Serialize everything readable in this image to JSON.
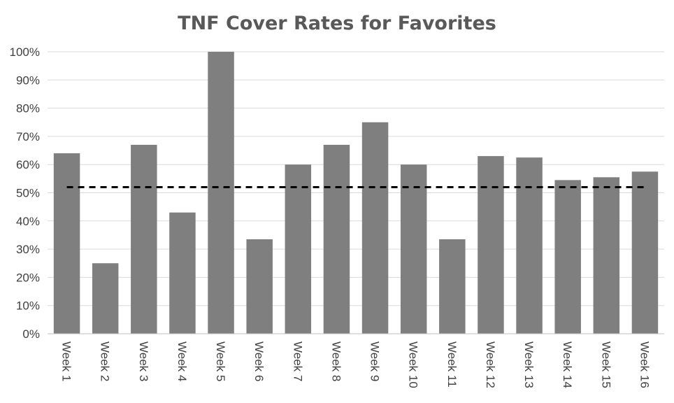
{
  "chart_data": {
    "type": "bar",
    "title": "TNF Cover Rates for Favorites",
    "xlabel": "",
    "ylabel": "",
    "categories": [
      "Week 1",
      "Week 2",
      "Week 3",
      "Week 4",
      "Week 5",
      "Week 6",
      "Week 7",
      "Week 8",
      "Week 9",
      "Week 10",
      "Week 11",
      "Week 12",
      "Week 13",
      "Week 14",
      "Week 15",
      "Week 16"
    ],
    "values": [
      0.64,
      0.25,
      0.67,
      0.43,
      1.0,
      0.335,
      0.6,
      0.67,
      0.75,
      0.6,
      0.335,
      0.63,
      0.625,
      0.545,
      0.555,
      0.575
    ],
    "reference_line": {
      "value": 0.52,
      "style": "dashed"
    },
    "ylim": [
      0,
      1
    ],
    "yticks": [
      "0%",
      "10%",
      "20%",
      "30%",
      "40%",
      "50%",
      "60%",
      "70%",
      "80%",
      "90%",
      "100%"
    ],
    "bar_color": "#7f7f7f",
    "grid": true,
    "legend": "none"
  }
}
